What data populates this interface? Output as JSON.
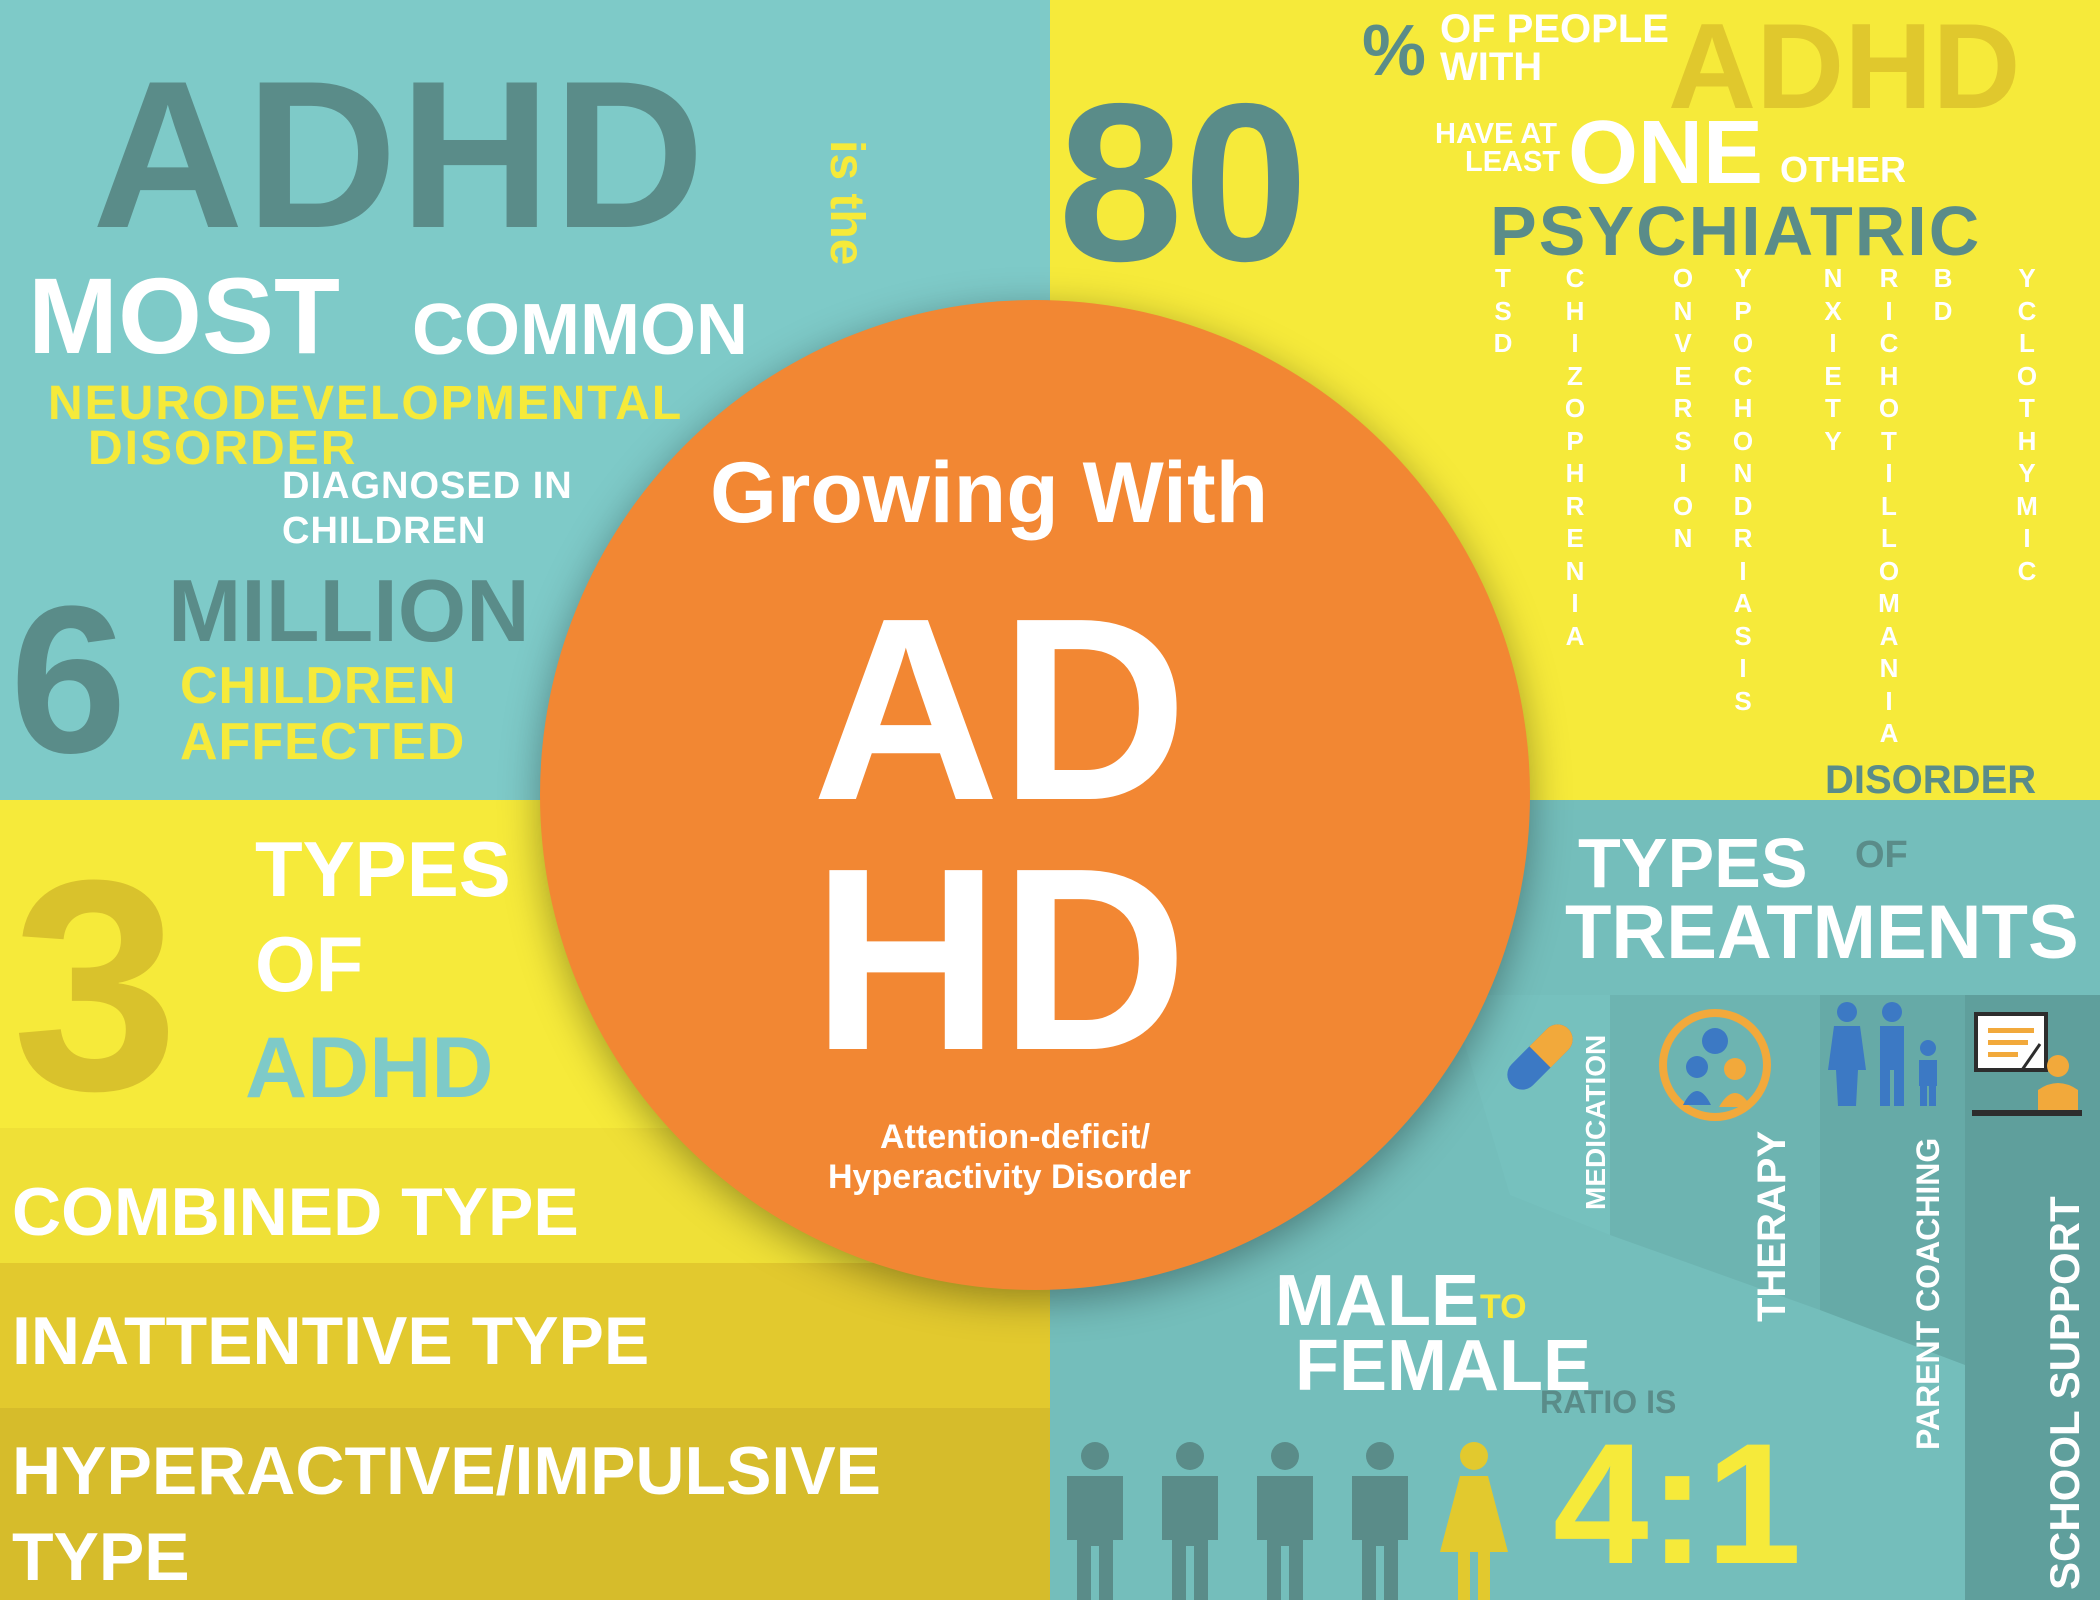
{
  "colors": {
    "teal_light": "#7ecac8",
    "teal_mid": "#74bebb",
    "teal_dark": "#5a8c89",
    "yellow": "#f6ea3a",
    "mustard": "#e2c92e",
    "mustard_dark": "#d6bc2b",
    "orange": "#f28733",
    "white": "#ffffff"
  },
  "top_left": {
    "big_word": "ADHD",
    "is_the": "is the",
    "most": "MOST",
    "common": "COMMON",
    "neuro": "NEURODEVELOPMENTAL",
    "disorder": "DISORDER",
    "diagnosed_in": "DIAGNOSED IN",
    "children": "CHILDREN",
    "six": "6",
    "million": "MILLION",
    "children_yellow": "CHILDREN",
    "affected": "AFFECTED"
  },
  "top_right": {
    "eighty": "80",
    "percent": "%",
    "of_people": "OF PEOPLE",
    "with": "WITH",
    "adhd_faded": "ADHD",
    "have_at": "HAVE AT",
    "least": "LEAST",
    "one": "ONE",
    "other": "OTHER",
    "psychiatric": "PSYCHIATRIC",
    "disorder": "DISORDER",
    "columns": [
      {
        "name": "col-tsd",
        "text": "TSD"
      },
      {
        "name": "col-chizophrenia",
        "text": "CHIZOPHRENIA"
      },
      {
        "name": "col-onversion",
        "text": "ONVERSION"
      },
      {
        "name": "col-ypochondriasis",
        "text": "YPOCHONDRIASIS"
      },
      {
        "name": "col-nxiety",
        "text": "NXIETY"
      },
      {
        "name": "col-richotillomania",
        "text": "RICHOTILLOMANIA"
      },
      {
        "name": "col-bd",
        "text": "BD"
      },
      {
        "name": "col-yclothymic",
        "text": "YCLOTHYMIC"
      }
    ]
  },
  "center": {
    "growing_with": "Growing With",
    "ad": "AD",
    "hd": "HD",
    "sub_line1": "Attention-deficit/",
    "sub_line2": "Hyperactivity Disorder"
  },
  "bottom_left": {
    "three": "3",
    "types": "TYPES",
    "of": "OF",
    "adhd": "ADHD",
    "bands": [
      {
        "name": "band-combined",
        "text": "COMBINED TYPE"
      },
      {
        "name": "band-inattentive",
        "text": "INATTENTIVE TYPE"
      },
      {
        "name": "band-hyperactive-line1",
        "text": "HYPERACTIVE/IMPULSIVE"
      },
      {
        "name": "band-hyperactive-line2",
        "text": "TYPE"
      }
    ]
  },
  "bottom_right": {
    "types": "TYPES",
    "of": "OF",
    "treatments": "TREATMENTS",
    "treatment_labels": [
      {
        "name": "label-medication",
        "text": "MEDICATION"
      },
      {
        "name": "label-therapy",
        "text": "THERAPY"
      },
      {
        "name": "label-parent-coaching",
        "text": "PARENT COACHING"
      },
      {
        "name": "label-school-support",
        "text": "SCHOOL SUPPORT"
      }
    ],
    "male": "MALE",
    "to": "TO",
    "female": "FEMALE",
    "ratio_is": "RATIO IS",
    "ratio": "4:1"
  },
  "icons": {
    "medication": "pill-icon",
    "therapy": "therapy-people-icon",
    "parent_coaching": "family-icon",
    "school_support": "teacher-board-icon",
    "male": "male-figure-icon",
    "female": "female-figure-icon"
  }
}
